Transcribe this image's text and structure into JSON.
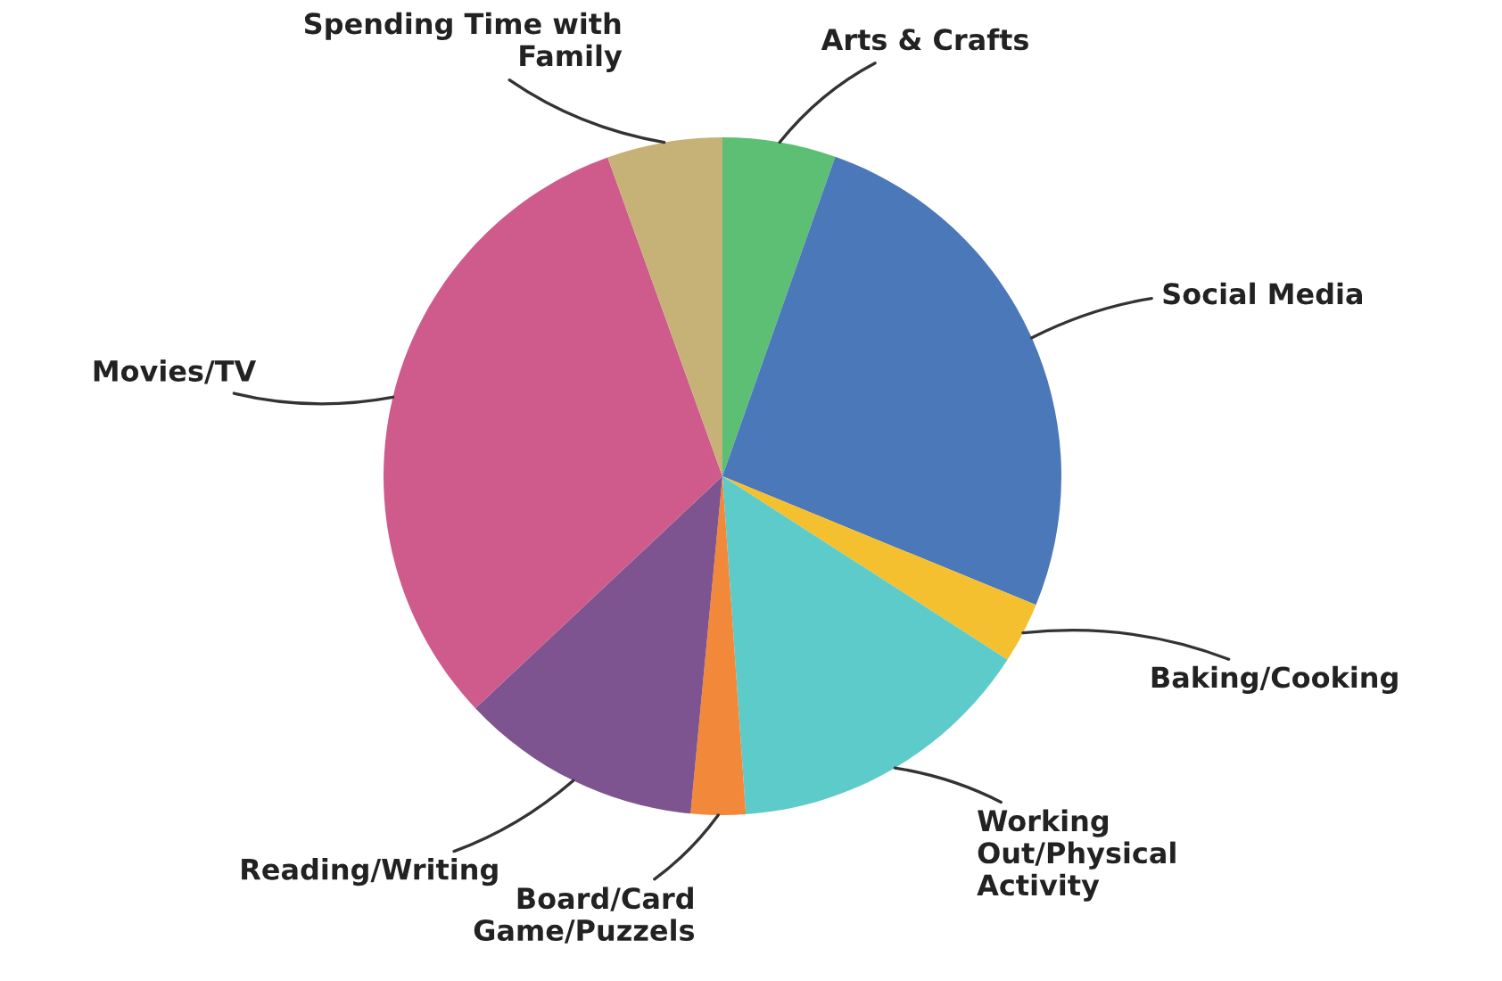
{
  "chart_data": {
    "type": "pie",
    "categories": [
      "Arts & Crafts",
      "Social Media",
      "Baking/Cooking",
      "Working\nOut/Physical\nActivity",
      "Board/Card\nGame/Puzzels",
      "Reading/Writing",
      "Movies/TV",
      "Spending Time with\nFamily"
    ],
    "values": [
      5.4,
      25.8,
      2.9,
      14.8,
      2.6,
      11.5,
      31.5,
      5.5
    ],
    "colors": [
      "#5cbf73",
      "#4a78b8",
      "#f5c030",
      "#5ccbc9",
      "#f2893a",
      "#7d548f",
      "#cf5b8d",
      "#c6b277"
    ]
  }
}
